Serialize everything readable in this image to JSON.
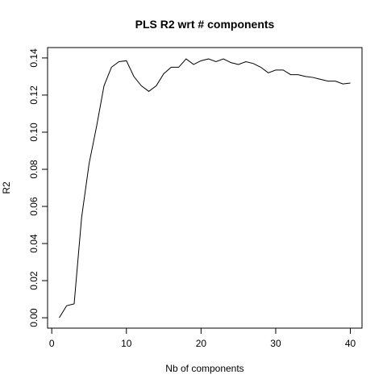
{
  "chart_data": {
    "type": "line",
    "title": "PLS R2 wrt # components",
    "xlabel": "Nb of components",
    "ylabel": "R2",
    "xlim": [
      -0.56,
      41.56
    ],
    "ylim": [
      -0.0056,
      0.1456
    ],
    "x_ticks": [
      0,
      10,
      20,
      30,
      40
    ],
    "x_tick_labels": [
      "0",
      "10",
      "20",
      "30",
      "40"
    ],
    "y_ticks": [
      0.0,
      0.02,
      0.04,
      0.06,
      0.08,
      0.1,
      0.12,
      0.14
    ],
    "y_tick_labels": [
      "0.00",
      "0.02",
      "0.04",
      "0.06",
      "0.08",
      "0.10",
      "0.12",
      "0.14"
    ],
    "grid": false,
    "line_color": "#000000",
    "x": [
      1,
      2,
      3,
      4,
      5,
      6,
      7,
      8,
      9,
      10,
      11,
      12,
      13,
      14,
      15,
      16,
      17,
      18,
      19,
      20,
      21,
      22,
      23,
      24,
      25,
      26,
      27,
      28,
      29,
      30,
      31,
      32,
      33,
      34,
      35,
      36,
      37,
      38,
      39,
      40
    ],
    "y": [
      0.0,
      0.0065,
      0.0075,
      0.054,
      0.083,
      0.103,
      0.125,
      0.135,
      0.138,
      0.1385,
      0.13,
      0.125,
      0.122,
      0.125,
      0.1315,
      0.135,
      0.135,
      0.1395,
      0.1365,
      0.1385,
      0.1395,
      0.138,
      0.1395,
      0.1375,
      0.1365,
      0.138,
      0.137,
      0.135,
      0.132,
      0.1335,
      0.1335,
      0.131,
      0.131,
      0.13,
      0.1295,
      0.1285,
      0.1275,
      0.1275,
      0.126,
      0.1265
    ]
  }
}
